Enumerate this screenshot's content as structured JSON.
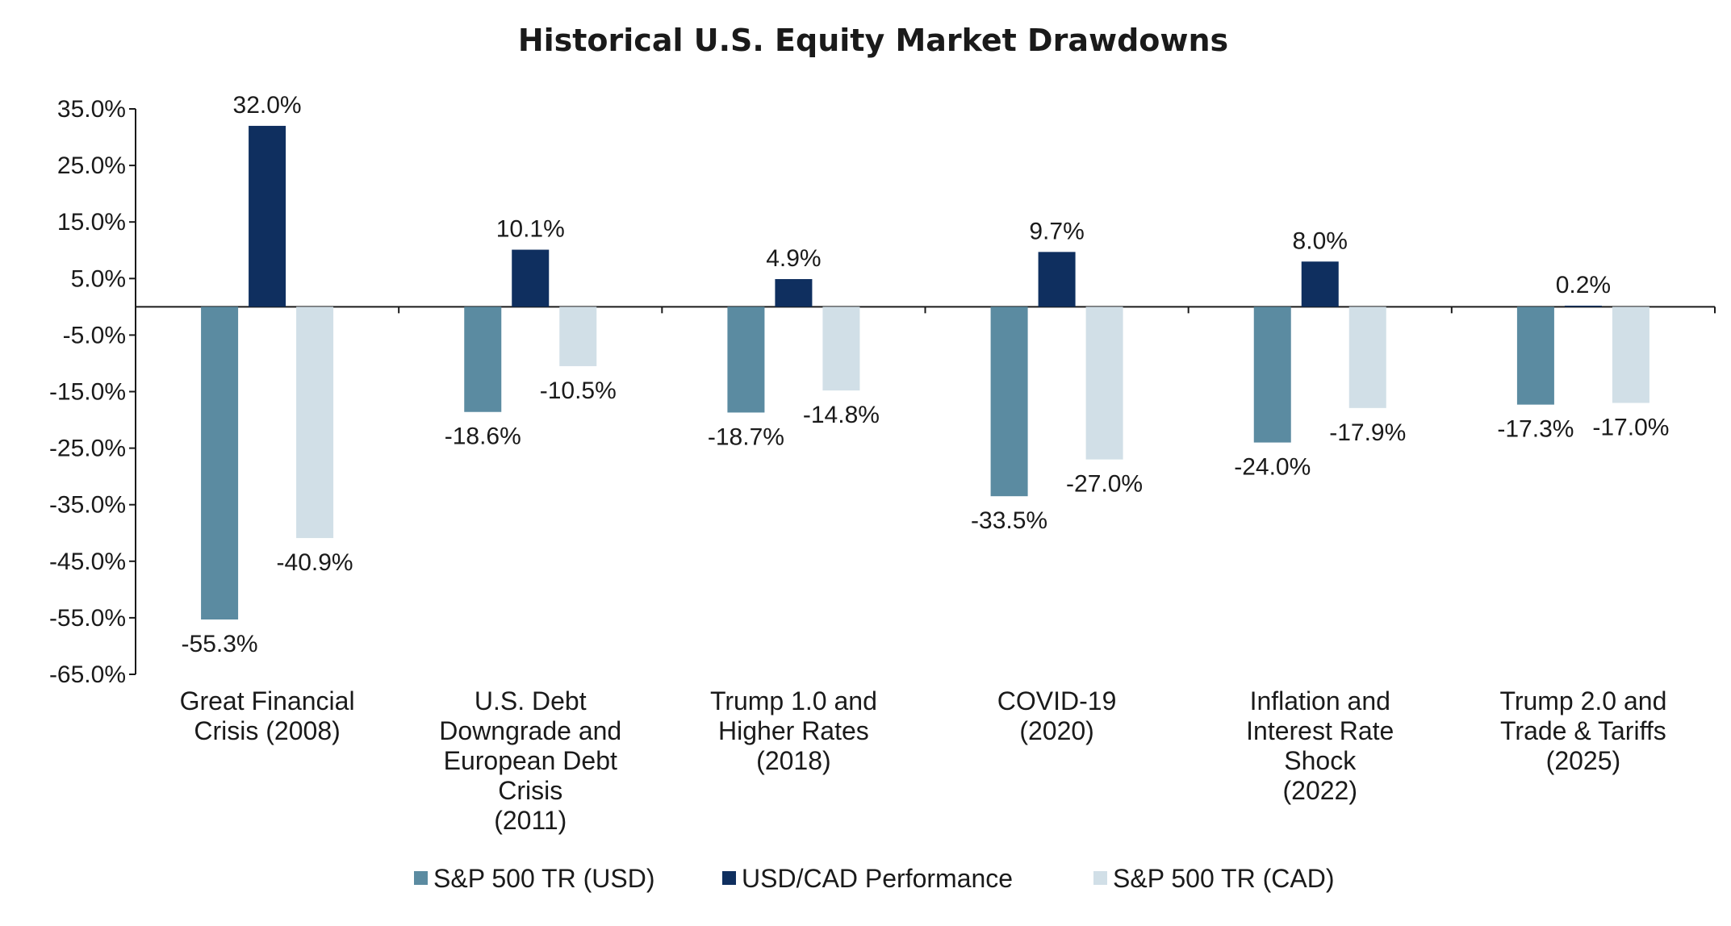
{
  "chart_data": {
    "type": "bar",
    "title": "Historical U.S. Equity Market Drawdowns",
    "xlabel": "",
    "ylabel": "",
    "ylim": [
      -65,
      35
    ],
    "yticks": [
      35,
      25,
      15,
      5,
      -5,
      -15,
      -25,
      -35,
      -45,
      -55,
      -65
    ],
    "ytick_labels": [
      "35.0%",
      "25.0%",
      "15.0%",
      "5.0%",
      "-5.0%",
      "-15.0%",
      "-25.0%",
      "-35.0%",
      "-45.0%",
      "-55.0%",
      "-65.0%"
    ],
    "categories": [
      [
        "Great Financial",
        "Crisis (2008)"
      ],
      [
        "U.S. Debt",
        "Downgrade and",
        "European Debt",
        "Crisis",
        "(2011)"
      ],
      [
        "Trump 1.0 and",
        "Higher Rates",
        "(2018)"
      ],
      [
        "COVID-19",
        "(2020)"
      ],
      [
        "Inflation and",
        "Interest Rate",
        "Shock",
        "(2022)"
      ],
      [
        "Trump 2.0 and",
        "Trade & Tariffs",
        "(2025)"
      ]
    ],
    "series": [
      {
        "name": "S&P 500 TR (USD)",
        "color": "#5b8ba1",
        "values": [
          -55.3,
          -18.6,
          -18.7,
          -33.5,
          -24.0,
          -17.3
        ],
        "labels": [
          "-55.3%",
          "-18.6%",
          "-18.7%",
          "-33.5%",
          "-24.0%",
          "-17.3%"
        ]
      },
      {
        "name": "USD/CAD Performance",
        "color": "#0f2f5f",
        "values": [
          32.0,
          10.1,
          4.9,
          9.7,
          8.0,
          0.2
        ],
        "labels": [
          "32.0%",
          "10.1%",
          "4.9%",
          "9.7%",
          "8.0%",
          "0.2%"
        ]
      },
      {
        "name": "S&P 500 TR (CAD)",
        "color": "#d1dfe7",
        "values": [
          -40.9,
          -10.5,
          -14.8,
          -27.0,
          -17.9,
          -17.0
        ],
        "labels": [
          "-40.9%",
          "-10.5%",
          "-14.8%",
          "-27.0%",
          "-17.9%",
          "-17.0%"
        ]
      }
    ],
    "grid": false,
    "legend": "bottom-center"
  }
}
